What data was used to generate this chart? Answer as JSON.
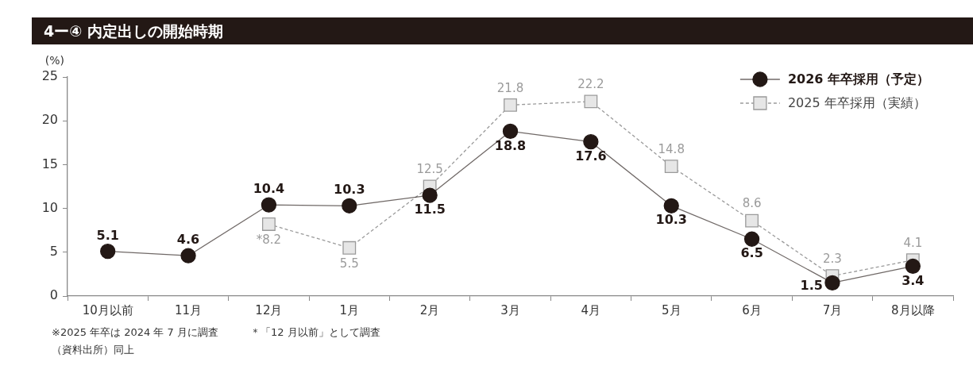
{
  "chart_data": {
    "type": "line",
    "title": "4ー④ 内定出しの開始時期",
    "ylabel": "(%)",
    "categories": [
      "10月以前",
      "11月",
      "12月",
      "1月",
      "2月",
      "3月",
      "4月",
      "5月",
      "6月",
      "7月",
      "8月以降"
    ],
    "ylim": [
      0,
      25
    ],
    "yticks": [
      0,
      5,
      10,
      15,
      20,
      25
    ],
    "grid": false,
    "legend": "top right",
    "series": [
      {
        "name": "2026 年卒採用（予定）",
        "color": "#231815",
        "marker": "circle",
        "line_style": "solid",
        "values": [
          5.1,
          4.6,
          10.4,
          10.3,
          11.5,
          18.8,
          17.6,
          10.3,
          6.5,
          1.5,
          3.4
        ],
        "value_labels": [
          "5.1",
          "4.6",
          "10.4",
          "10.3",
          "11.5",
          "18.8",
          "17.6",
          "10.3",
          "6.5",
          "1.5",
          "3.4"
        ]
      },
      {
        "name": "2025 年卒採用（実績）",
        "color": "#9a9a9a",
        "marker": "square",
        "line_style": "dashed",
        "values": [
          null,
          null,
          8.2,
          5.5,
          12.5,
          21.8,
          22.2,
          14.8,
          8.6,
          2.3,
          4.1
        ],
        "value_labels": [
          null,
          null,
          "*8.2",
          "5.5",
          "12.5",
          "21.8",
          "22.2",
          "14.8",
          "8.6",
          "2.3",
          "4.1"
        ]
      }
    ],
    "annotations": [
      "※2025 年卒は 2024 年 7 月に調査",
      "＊「12 月以前」として調査",
      "（資料出所）同上"
    ]
  }
}
